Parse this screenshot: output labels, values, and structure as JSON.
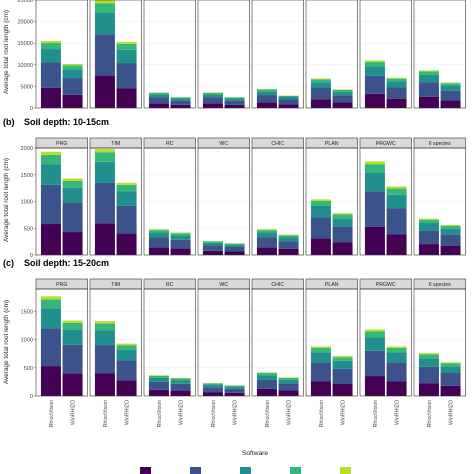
{
  "chart_data": {
    "type": "bar",
    "stacked": true,
    "facets": [
      "PRG",
      "TIM",
      "RC",
      "WC",
      "CHIC",
      "PLAN",
      "PRGWC",
      "6 species"
    ],
    "categories": [
      "RhizoVision",
      "WinRHIZO"
    ],
    "xlabel": "Software",
    "ylabel": "Average total root length (cm)",
    "grid": true,
    "legend_position": "bottom",
    "colors": [
      "#440154",
      "#3b528b",
      "#21908d",
      "#35b779",
      "#b8de29"
    ],
    "panels": [
      {
        "tag": "",
        "title": "",
        "ylim": [
          0,
          25000
        ],
        "yticks": [
          0,
          5000,
          10000,
          15000,
          20000,
          25000
        ],
        "totals": [
          [
            15500,
            10200
          ],
          [
            25000,
            15300
          ],
          [
            3600,
            2500
          ],
          [
            3600,
            2500
          ],
          [
            4400,
            2900
          ],
          [
            6800,
            4300
          ],
          [
            11000,
            7000
          ],
          [
            8700,
            5900
          ]
        ]
      },
      {
        "tag": "(b)",
        "title": "Soil depth: 10-15cm",
        "ylim": [
          0,
          2000
        ],
        "yticks": [
          0,
          500,
          1000,
          1500,
          2000
        ],
        "totals": [
          [
            1930,
            1430
          ],
          [
            1980,
            1350
          ],
          [
            480,
            420
          ],
          [
            260,
            220
          ],
          [
            480,
            380
          ],
          [
            1040,
            780
          ],
          [
            1750,
            1280
          ],
          [
            680,
            560
          ]
        ]
      },
      {
        "tag": "(c)",
        "title": "Soil depth: 15-20cm",
        "ylim": [
          0,
          1900
        ],
        "yticks": [
          0,
          500,
          1000,
          1500
        ],
        "totals": [
          [
            1770,
            1340
          ],
          [
            1330,
            930
          ],
          [
            370,
            320
          ],
          [
            230,
            190
          ],
          [
            420,
            330
          ],
          [
            880,
            710
          ],
          [
            1180,
            880
          ],
          [
            760,
            600
          ]
        ]
      }
    ],
    "layer_fractions": [
      0.3,
      0.38,
      0.2,
      0.09,
      0.03
    ],
    "legend": [
      "",
      "",
      "",
      "",
      ""
    ]
  }
}
